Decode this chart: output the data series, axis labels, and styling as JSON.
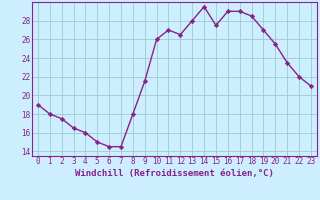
{
  "x": [
    0,
    1,
    2,
    3,
    4,
    5,
    6,
    7,
    8,
    9,
    10,
    11,
    12,
    13,
    14,
    15,
    16,
    17,
    18,
    19,
    20,
    21,
    22,
    23
  ],
  "y": [
    19.0,
    18.0,
    17.5,
    16.5,
    16.0,
    15.0,
    14.5,
    14.5,
    18.0,
    21.5,
    26.0,
    27.0,
    26.5,
    28.0,
    29.5,
    27.5,
    29.0,
    29.0,
    28.5,
    27.0,
    25.5,
    23.5,
    22.0,
    21.0
  ],
  "xlim": [
    -0.5,
    23.5
  ],
  "ylim": [
    13.5,
    30.0
  ],
  "yticks": [
    14,
    16,
    18,
    20,
    22,
    24,
    26,
    28
  ],
  "xticks": [
    0,
    1,
    2,
    3,
    4,
    5,
    6,
    7,
    8,
    9,
    10,
    11,
    12,
    13,
    14,
    15,
    16,
    17,
    18,
    19,
    20,
    21,
    22,
    23
  ],
  "xlabel": "Windchill (Refroidissement éolien,°C)",
  "line_color": "#882288",
  "bg_color": "#cceeff",
  "grid_color": "#99cccc",
  "marker": "D",
  "marker_size": 2.2,
  "line_width": 1.0,
  "tick_fontsize": 5.5,
  "xlabel_fontsize": 6.5
}
